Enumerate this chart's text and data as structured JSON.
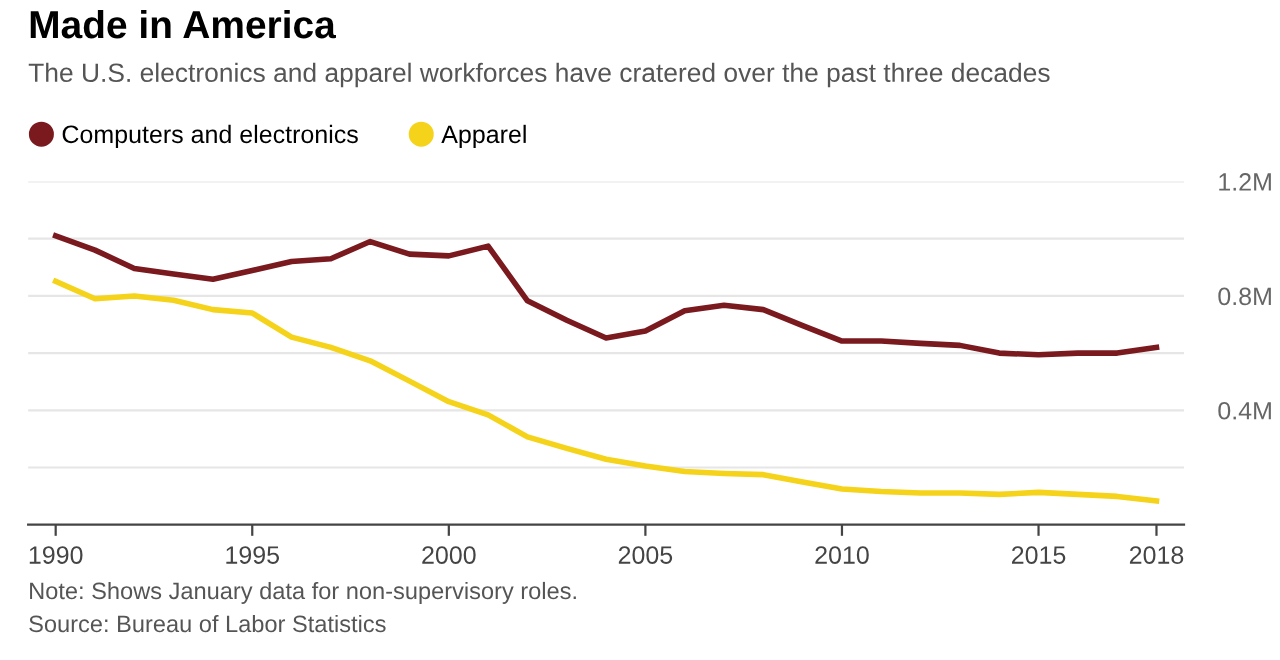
{
  "chart_data": {
    "type": "line",
    "title": "Made in America",
    "subtitle": "The U.S. electronics and apparel workforces have cratered over the past three decades",
    "x": [
      1990,
      1991,
      1992,
      1993,
      1994,
      1995,
      1996,
      1997,
      1998,
      1999,
      2000,
      2001,
      2002,
      2003,
      2004,
      2005,
      2006,
      2007,
      2008,
      2009,
      2010,
      2011,
      2012,
      2013,
      2014,
      2015,
      2016,
      2017,
      2018
    ],
    "series": [
      {
        "name": "Computers and electronics",
        "color": "#7a1a1f",
        "values": [
          1.01,
          0.96,
          0.896,
          0.877,
          0.858,
          0.889,
          0.92,
          0.93,
          0.99,
          0.946,
          0.94,
          0.974,
          0.783,
          0.715,
          0.653,
          0.677,
          0.748,
          0.767,
          0.752,
          0.696,
          0.642,
          0.642,
          0.634,
          0.627,
          0.6,
          0.594,
          0.6,
          0.6,
          0.62
        ]
      },
      {
        "name": "Apparel",
        "color": "#f5d31a",
        "values": [
          0.851,
          0.79,
          0.8,
          0.785,
          0.752,
          0.74,
          0.656,
          0.62,
          0.573,
          0.502,
          0.43,
          0.384,
          0.307,
          0.267,
          0.229,
          0.205,
          0.186,
          0.179,
          0.175,
          0.149,
          0.125,
          0.116,
          0.111,
          0.111,
          0.106,
          0.113,
          0.106,
          0.099,
          0.083
        ]
      }
    ],
    "xlim": [
      1989.3,
      2018.7
    ],
    "xticks": [
      1990,
      1995,
      2000,
      2005,
      2010,
      2015,
      2018
    ],
    "ylim": [
      0,
      1.2
    ],
    "yticks": [
      {
        "value": 0.2,
        "label": null
      },
      {
        "value": 0.4,
        "label": "0.4M"
      },
      {
        "value": 0.6,
        "label": null
      },
      {
        "value": 0.8,
        "label": "0.8M"
      },
      {
        "value": 1.0,
        "label": null
      },
      {
        "value": 1.2,
        "label": "1.2M"
      }
    ],
    "grid": "y",
    "legend": "top left",
    "marker": "none",
    "line_style": "solid",
    "annotations": [
      "Note: Shows January data for non-supervisory roles.",
      "Source: Bureau of Labor Statistics"
    ]
  }
}
